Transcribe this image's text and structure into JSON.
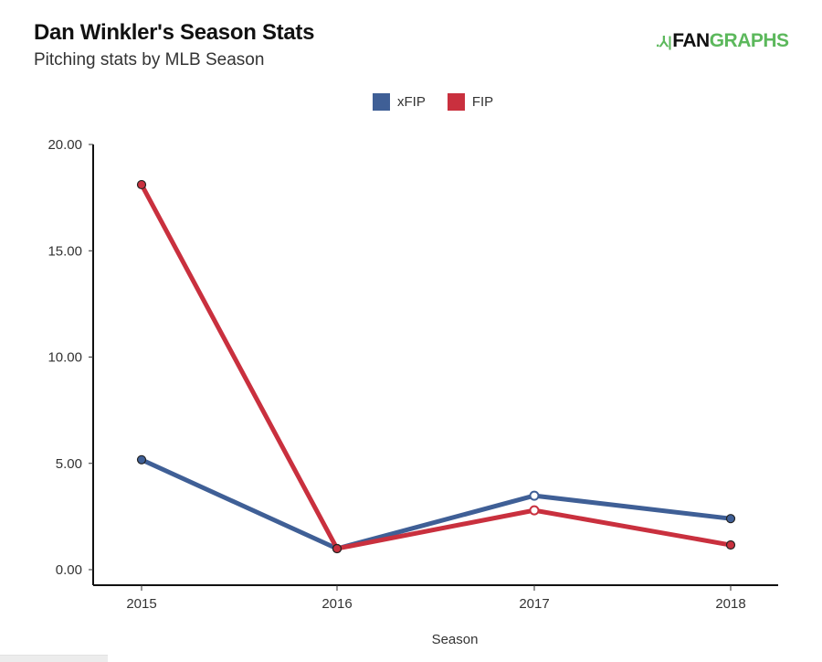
{
  "header": {
    "title": "Dan Winkler's Season Stats",
    "subtitle": "Pitching stats by MLB Season",
    "logo_text_dark": "FAN",
    "logo_text_green": "GRAPHS",
    "logo_icon": "batter-icon"
  },
  "colors": {
    "xfip": "#3f5f96",
    "fip": "#c9303e",
    "axis": "#111111",
    "logo_green": "#5cb85c"
  },
  "chart_data": {
    "type": "line",
    "title": "Dan Winkler's Season Stats",
    "subtitle": "Pitching stats by MLB Season",
    "xlabel": "Season",
    "ylabel": "",
    "categories": [
      "2015",
      "2016",
      "2017",
      "2018"
    ],
    "ylim": [
      0,
      20
    ],
    "yticks": [
      "0.00",
      "5.00",
      "10.00",
      "15.00",
      "20.00"
    ],
    "ytick_values": [
      0,
      5,
      10,
      15,
      20
    ],
    "grid": false,
    "legend_position": "top-center",
    "series": [
      {
        "name": "xFIP",
        "values": [
          5.17,
          0.99,
          3.48,
          2.4
        ]
      },
      {
        "name": "FIP",
        "values": [
          18.11,
          0.99,
          2.79,
          1.16
        ]
      }
    ],
    "highlighted_category": "2017"
  }
}
